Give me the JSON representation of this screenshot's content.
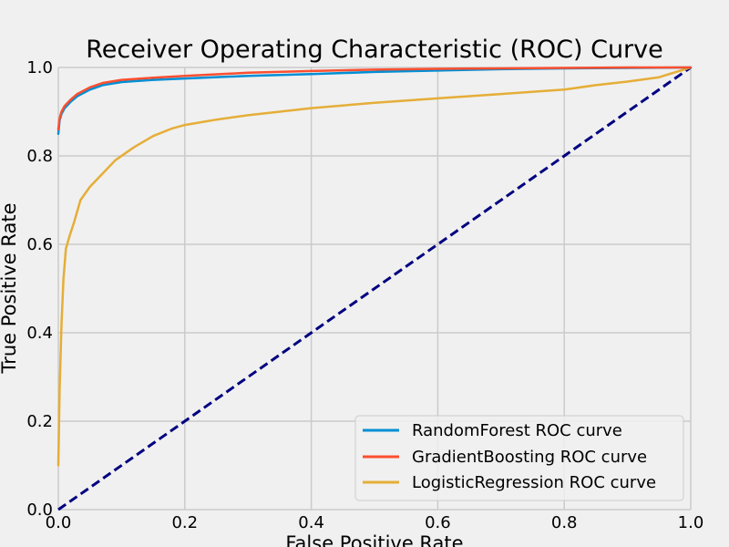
{
  "chart_data": {
    "type": "line",
    "title": "Receiver Operating Characteristic (ROC) Curve",
    "xlabel": "False Positive Rate",
    "ylabel": "True Positive Rate",
    "xlim": [
      0.0,
      1.0
    ],
    "ylim": [
      0.0,
      1.0
    ],
    "xticks": [
      0.0,
      0.2,
      0.4,
      0.6,
      0.8,
      1.0
    ],
    "yticks": [
      0.0,
      0.2,
      0.4,
      0.6,
      0.8,
      1.0
    ],
    "xtick_labels": [
      "0.0",
      "0.2",
      "0.4",
      "0.6",
      "0.8",
      "1.0"
    ],
    "ytick_labels": [
      "0.0",
      "0.2",
      "0.4",
      "0.6",
      "0.8",
      "1.0"
    ],
    "grid": true,
    "legend_position": "bottom-right",
    "background_color": "#f0f0f0",
    "grid_color": "#cbcbcb",
    "series": [
      {
        "name": "RandomForest ROC curve",
        "color": "#008fd5",
        "x": [
          0.0,
          0.002,
          0.005,
          0.01,
          0.02,
          0.03,
          0.05,
          0.07,
          0.1,
          0.15,
          0.2,
          0.3,
          0.4,
          0.5,
          0.6,
          0.7,
          0.8,
          0.9,
          1.0
        ],
        "y": [
          0.85,
          0.88,
          0.895,
          0.908,
          0.923,
          0.935,
          0.95,
          0.96,
          0.967,
          0.972,
          0.975,
          0.981,
          0.985,
          0.99,
          0.993,
          0.996,
          0.998,
          0.999,
          1.0
        ]
      },
      {
        "name": "GradientBoosting ROC curve",
        "color": "#fc4f30",
        "x": [
          0.0,
          0.002,
          0.005,
          0.01,
          0.02,
          0.03,
          0.05,
          0.07,
          0.1,
          0.15,
          0.2,
          0.3,
          0.4,
          0.5,
          0.6,
          0.7,
          0.8,
          0.9,
          1.0
        ],
        "y": [
          0.86,
          0.885,
          0.9,
          0.913,
          0.928,
          0.94,
          0.955,
          0.965,
          0.972,
          0.977,
          0.981,
          0.988,
          0.992,
          0.995,
          0.997,
          0.998,
          0.999,
          1.0,
          1.0
        ]
      },
      {
        "name": "LogisticRegression ROC curve",
        "color": "#e5ae38",
        "x": [
          0.0,
          0.002,
          0.005,
          0.008,
          0.012,
          0.018,
          0.025,
          0.035,
          0.05,
          0.07,
          0.09,
          0.12,
          0.15,
          0.18,
          0.2,
          0.25,
          0.3,
          0.35,
          0.4,
          0.5,
          0.6,
          0.7,
          0.8,
          0.85,
          0.9,
          0.95,
          1.0
        ],
        "y": [
          0.1,
          0.27,
          0.42,
          0.52,
          0.59,
          0.62,
          0.65,
          0.7,
          0.73,
          0.76,
          0.79,
          0.82,
          0.845,
          0.862,
          0.87,
          0.882,
          0.892,
          0.9,
          0.908,
          0.92,
          0.93,
          0.94,
          0.95,
          0.96,
          0.968,
          0.978,
          1.0
        ]
      },
      {
        "name": "",
        "color": "#000080",
        "dashed": true,
        "x": [
          0.0,
          1.0
        ],
        "y": [
          0.0,
          1.0
        ]
      }
    ]
  }
}
